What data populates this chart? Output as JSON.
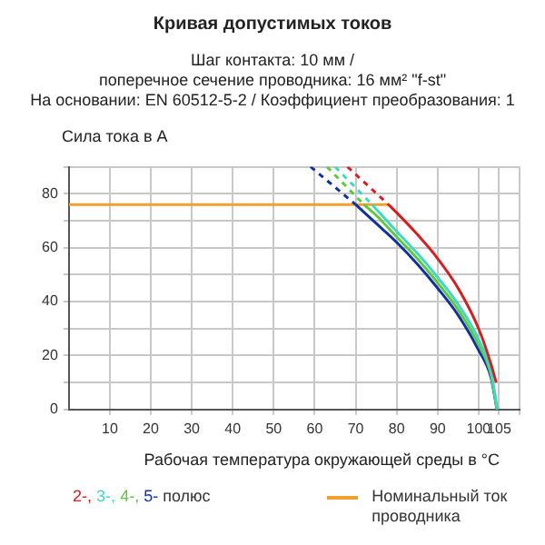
{
  "chart_data": {
    "type": "line",
    "title": "Кривая допустимых токов",
    "subtitle": "Шаг контакта: 10 мм /\nпоперечное сечение проводника: 16 мм² \"f-st\"\nНа основании: EN 60512-5-2 / Коэффициент преобразования: 1",
    "xlabel": "Рабочая температура окружающей среды в °C",
    "ylabel": "Сила тока в A",
    "annotations": [
      "полюс"
    ],
    "xlim": [
      0,
      110
    ],
    "xticks": [
      10,
      20,
      30,
      40,
      50,
      60,
      70,
      80,
      90,
      {
        "value": 100,
        "label": "100"
      },
      105,
      {
        "value": 110,
        "label": null
      }
    ],
    "ylim": [
      0,
      90
    ],
    "yticks": [
      0,
      {
        "value": 10,
        "label": null
      },
      20,
      {
        "value": 30,
        "label": null
      },
      40,
      {
        "value": 50,
        "label": null
      },
      60,
      {
        "value": 70,
        "label": null
      },
      80,
      {
        "value": 90,
        "label": null
      }
    ],
    "grid": true,
    "legend": "bottom",
    "marker": "none",
    "series": [
      {
        "name": "2-,",
        "color": "#d42020",
        "x": [
          78,
          80,
          85,
          90,
          95,
          100,
          103,
          104.3
        ],
        "values": [
          76,
          73,
          65,
          56,
          45,
          30,
          17,
          10
        ]
      },
      {
        "name": "3-,",
        "color": "#40d8c0",
        "x": [
          74,
          80,
          85,
          90,
          95,
          100,
          103,
          104.6
        ],
        "values": [
          76,
          66,
          58,
          49,
          39,
          26,
          14,
          0
        ]
      },
      {
        "name": "4-,",
        "color": "#60c840",
        "x": [
          72,
          75,
          80,
          85,
          90,
          95,
          100,
          103,
          104.5
        ],
        "values": [
          76,
          72,
          64,
          56,
          47,
          37,
          24,
          13,
          0
        ]
      },
      {
        "name": "5-",
        "color": "#1030a0",
        "x": [
          70,
          75,
          80,
          85,
          90,
          95,
          100,
          103,
          104.5
        ],
        "values": [
          76,
          69,
          62,
          54,
          45,
          35,
          22,
          12,
          0
        ]
      },
      {
        "color": "#d42020",
        "line_style": "dashed",
        "x": [
          68,
          78
        ],
        "values": [
          90,
          76
        ]
      },
      {
        "color": "#40d8c0",
        "line_style": "dashed",
        "x": [
          65,
          74
        ],
        "values": [
          90,
          76
        ]
      },
      {
        "color": "#60c840",
        "line_style": "dashed",
        "x": [
          63,
          72
        ],
        "values": [
          90,
          76
        ]
      },
      {
        "color": "#1030a0",
        "line_style": "dashed",
        "x": [
          59,
          70
        ],
        "values": [
          90,
          76
        ]
      },
      {
        "name": "Номинальный ток проводника",
        "color": "#f0a030",
        "x": [
          0,
          78
        ],
        "values": [
          76,
          76
        ]
      }
    ]
  }
}
